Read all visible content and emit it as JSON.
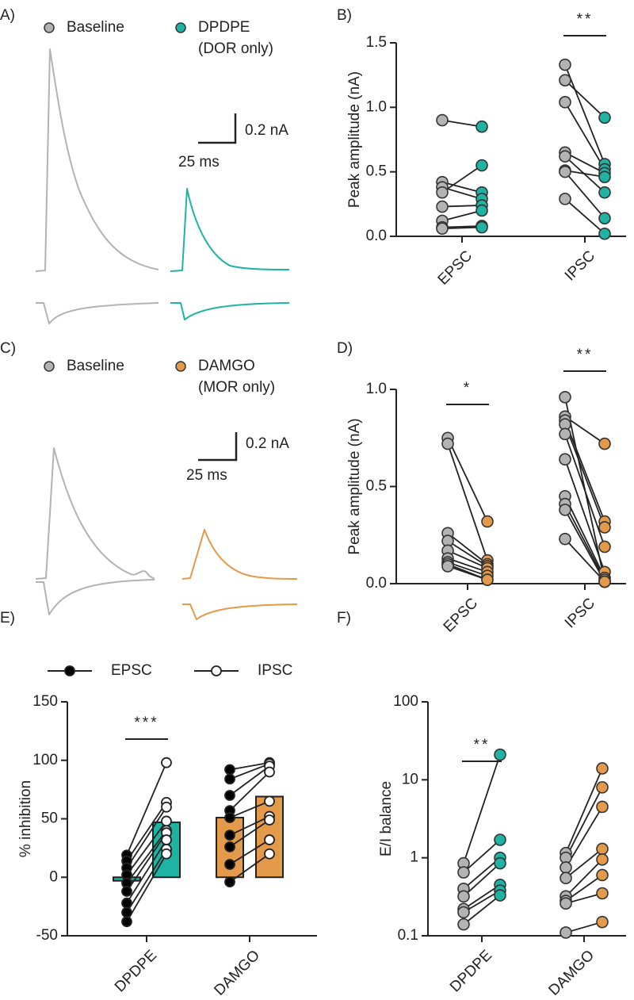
{
  "chart_data": [
    {
      "type": "traces",
      "panel": "A)",
      "legend": [
        {
          "name": "Baseline",
          "color": "#b3b3b3"
        },
        {
          "name": "DPDPE",
          "note": "(DOR only)",
          "color": "#1fb3a3"
        }
      ],
      "scale_y": "0.2 nA",
      "scale_x": "25 ms"
    },
    {
      "type": "paired",
      "panel": "B)",
      "ylabel": "Peak amplitude (nA)",
      "categories": [
        "EPSC",
        "IPSC"
      ],
      "ylim": [
        0,
        1.5
      ],
      "yticks": [
        {
          "value": 0,
          "label": "0.0"
        },
        0.5,
        {
          "value": 1,
          "label": "1.0"
        },
        1.5
      ],
      "series": [
        {
          "colors": [
            "#b3b3b3",
            "#b3b3b3"
          ],
          "values": [
            [
              0.9,
              0.42,
              0.38,
              0.34,
              0.23,
              0.12,
              0.07,
              0.06
            ],
            [
              1.33,
              1.21,
              1.04,
              0.65,
              0.62,
              0.51,
              0.5,
              0.29
            ]
          ]
        },
        {
          "colors": [
            "#1fb3a3",
            "#1fb3a3"
          ],
          "values": [
            [
              0.85,
              0.34,
              0.29,
              0.55,
              0.24,
              0.2,
              0.08,
              0.07
            ],
            [
              0.56,
              0.92,
              0.52,
              0.49,
              0.34,
              0.46,
              0.14,
              0.02
            ]
          ]
        }
      ],
      "significance": [
        null,
        "**"
      ]
    },
    {
      "type": "traces",
      "panel": "C)",
      "legend": [
        {
          "name": "Baseline",
          "color": "#b3b3b3"
        },
        {
          "name": "DAMGO",
          "note": "(MOR only)",
          "color": "#e39a4b"
        }
      ],
      "scale_y": "0.2 nA",
      "scale_x": "25 ms"
    },
    {
      "type": "paired",
      "panel": "D)",
      "ylabel": "Peak amplitude (nA)",
      "categories": [
        "EPSC",
        "IPSC"
      ],
      "ylim": [
        0,
        1
      ],
      "yticks": [
        {
          "value": 0,
          "label": "0.0"
        },
        0.5,
        {
          "value": 1,
          "label": "1.0"
        }
      ],
      "series": [
        {
          "colors": [
            "#b3b3b3",
            "#b3b3b3"
          ],
          "values": [
            [
              0.75,
              0.72,
              0.26,
              0.22,
              0.17,
              0.13,
              0.11,
              0.1,
              0.09
            ],
            [
              0.96,
              0.86,
              0.84,
              0.82,
              0.77,
              0.64,
              0.45,
              0.41,
              0.38,
              0.23
            ]
          ]
        },
        {
          "colors": [
            "#e39a4b",
            "#e39a4b"
          ],
          "values": [
            [
              0.32,
              0.12,
              0.1,
              0.09,
              0.08,
              0.06,
              0.04,
              0.02,
              0.02
            ],
            [
              0.01,
              0.72,
              0.32,
              0.29,
              0.19,
              0.06,
              0.03,
              0.02,
              0.01,
              0.01
            ]
          ]
        }
      ],
      "significance": [
        "*",
        "**"
      ]
    },
    {
      "type": "bar",
      "panel": "E)",
      "ylabel": "% inhibition",
      "categories": [
        "DPDPE",
        "DAMGO"
      ],
      "colors": [
        "#1fb3a3",
        "#e39a4b"
      ],
      "ylim": [
        -50,
        150
      ],
      "yticks": [
        -50,
        0,
        50,
        100,
        150
      ],
      "series": [
        {
          "name": "EPSC",
          "marker": "#000000",
          "bars": [
            -3,
            51
          ],
          "points": [
            [
              19,
              14,
              8,
              2,
              -5,
              -12,
              -22,
              -30,
              -38
            ],
            [
              92,
              84,
              70,
              57,
              51,
              36,
              26,
              11,
              -4
            ]
          ]
        },
        {
          "name": "IPSC",
          "marker": "#ffffff",
          "bars": [
            47,
            69
          ],
          "points": [
            [
              98,
              64,
              60,
              48,
              40,
              38,
              32,
              24,
              20
            ],
            [
              98,
              97,
              95,
              90,
              65,
              52,
              49,
              32,
              20
            ]
          ]
        }
      ],
      "significance": [
        "***",
        null
      ]
    },
    {
      "type": "paired",
      "panel": "F)",
      "ylabel": "E/I balance",
      "categories": [
        "DPDPE",
        "DAMGO"
      ],
      "log_scale": true,
      "ylim": [
        0.1,
        100
      ],
      "yticks": [
        0.1,
        1,
        10,
        100
      ],
      "series": [
        {
          "colors": [
            "#b3b3b3",
            "#b3b3b3"
          ],
          "values": [
            [
              0.85,
              0.65,
              0.4,
              0.32,
              0.22,
              0.2,
              0.14
            ],
            [
              1.15,
              1.0,
              0.75,
              0.55,
              0.32,
              0.28,
              0.26,
              0.11
            ]
          ]
        },
        {
          "colors": [
            "#1fb3a3",
            "#e39a4b"
          ],
          "values": [
            [
              21,
              1.7,
              1.0,
              0.85,
              0.45,
              0.38,
              0.33
            ],
            [
              14,
              8,
              4.5,
              1.3,
              0.95,
              0.6,
              0.35,
              0.15
            ]
          ]
        }
      ],
      "significance": [
        "**",
        null
      ]
    }
  ]
}
